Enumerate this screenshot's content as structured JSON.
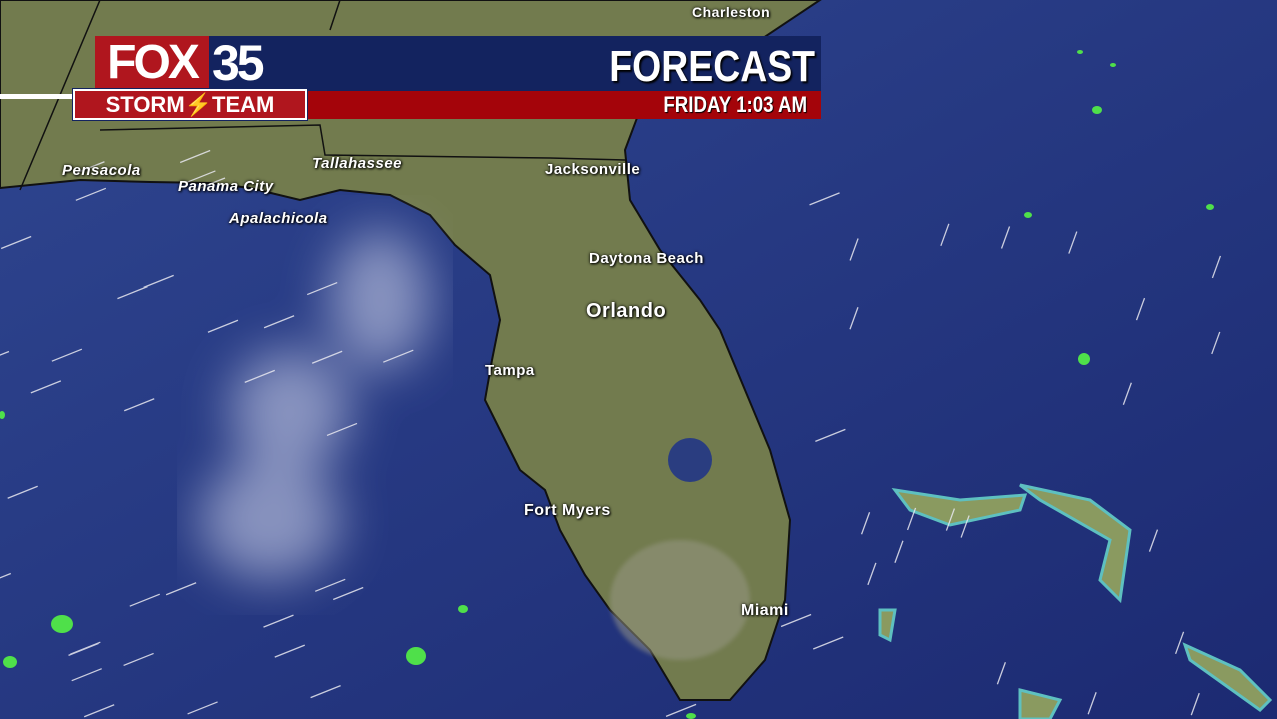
{
  "header": {
    "logo_text": "FOX",
    "channel_number": "35",
    "logo_subtitle": "STORM⚡TEAM",
    "title": "FORECAST",
    "day_time": "FRIDAY  1:03 AM",
    "colors": {
      "blue": "#13235f",
      "red": "#a4040a"
    }
  },
  "map": {
    "cities": [
      {
        "name": "Charleston"
      },
      {
        "name": "Pensacola"
      },
      {
        "name": "Panama City"
      },
      {
        "name": "Tallahassee"
      },
      {
        "name": "Apalachicola"
      },
      {
        "name": "Jacksonville"
      },
      {
        "name": "Daytona Beach"
      },
      {
        "name": "Orlando"
      },
      {
        "name": "Tampa"
      },
      {
        "name": "Fort Myers"
      },
      {
        "name": "Miami"
      }
    ],
    "colors": {
      "ocean": "#23357e",
      "land": "#6f7a4c",
      "radar": "#4fe04a"
    }
  }
}
